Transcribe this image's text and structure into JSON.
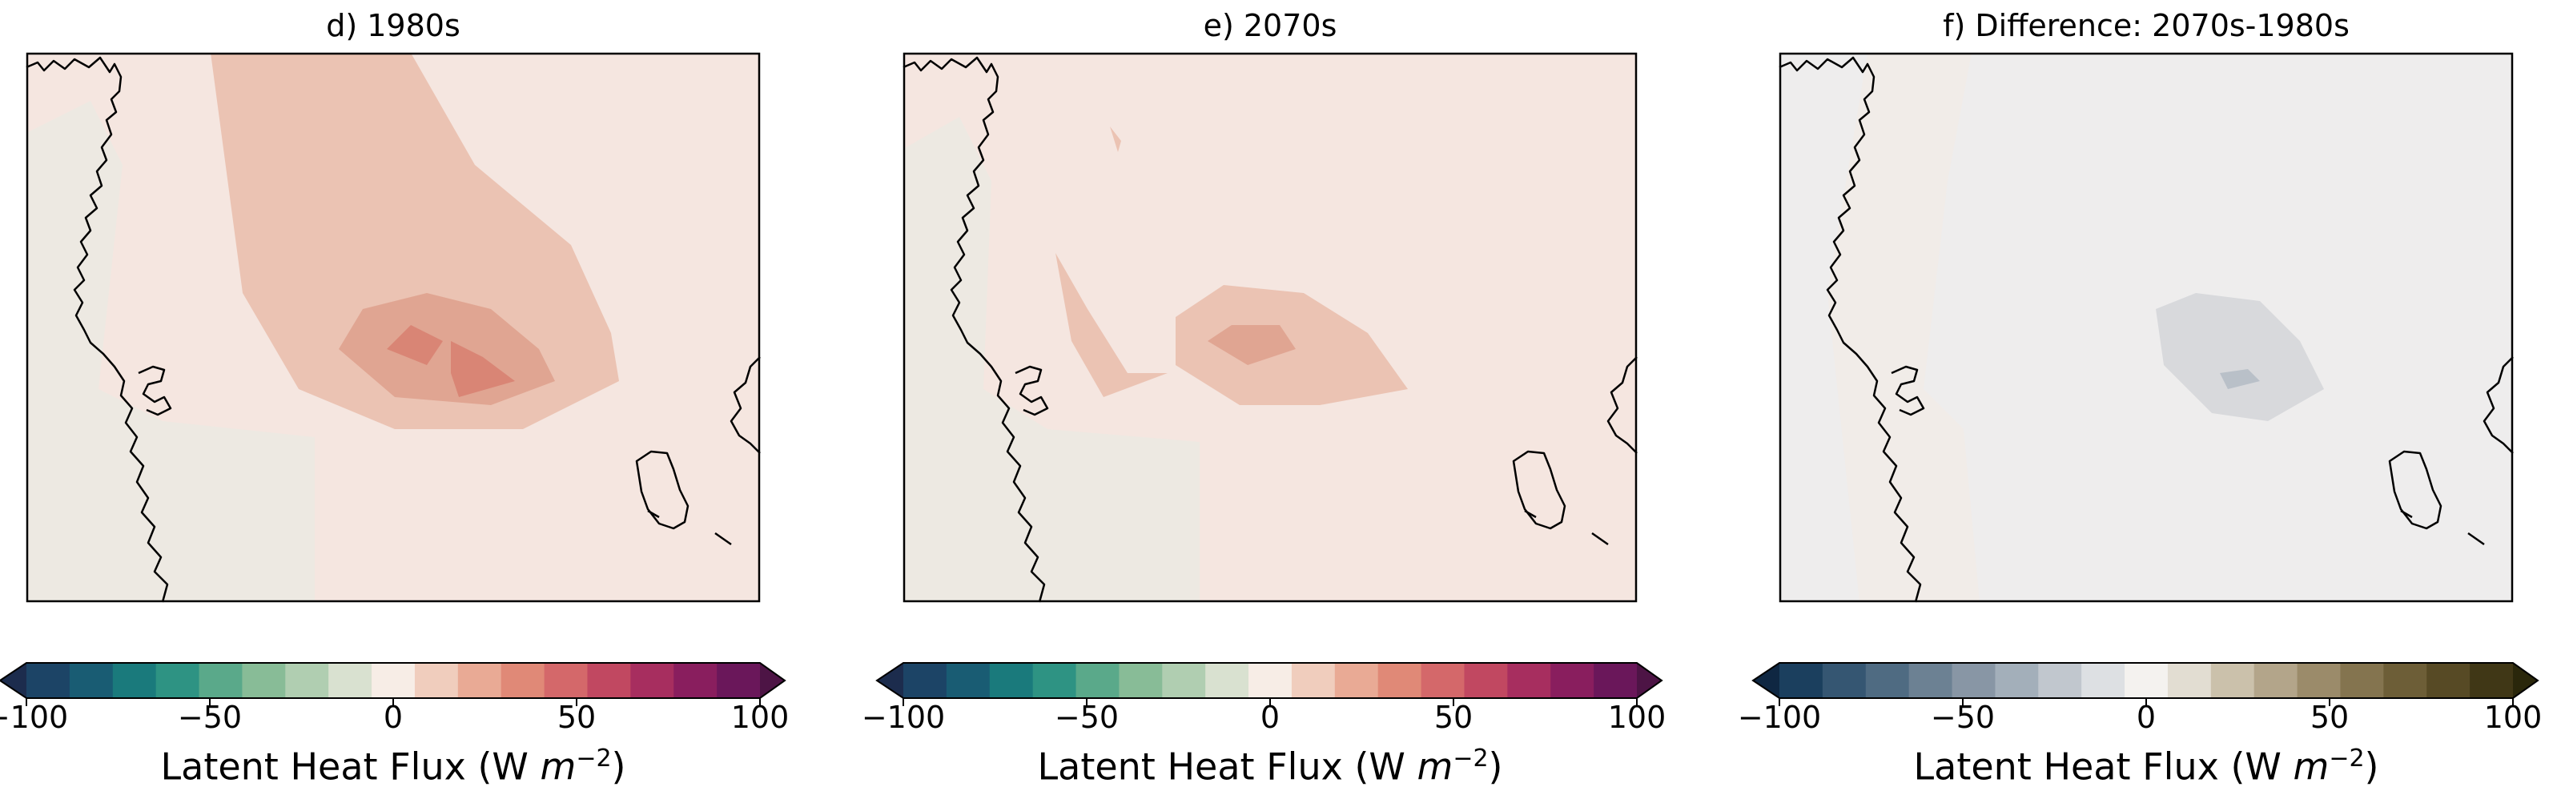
{
  "chart_data": [
    {
      "type": "heatmap",
      "title": "d) 1980s",
      "colorbar": {
        "label_main": "Latent Heat Flux (W ",
        "label_unit": "m",
        "label_exp": "−2",
        "label_close": ")",
        "range": [
          -100,
          100
        ],
        "ticks": [
          "−100",
          "−50",
          "0",
          "50",
          "100"
        ],
        "colors": [
          "#1c2c4d",
          "#1c4466",
          "#195c73",
          "#1a7a7c",
          "#2e9383",
          "#5aa98a",
          "#88bc97",
          "#b0ceb1",
          "#d9e1d0",
          "#f7ede6",
          "#f0cdbd",
          "#e9aa95",
          "#e08977",
          "#d4686a",
          "#c14861",
          "#a72e5f",
          "#891e5e",
          "#6a175a",
          "#4d1445"
        ]
      },
      "field_colors": {
        "background": "#f5e6e0",
        "west": "#ede9e2",
        "low": "#ebc3b3",
        "mid": "#e0a592",
        "high": "#d98575"
      }
    },
    {
      "type": "heatmap",
      "title": "e) 2070s",
      "colorbar": {
        "label_main": "Latent Heat Flux (W ",
        "label_unit": "m",
        "label_exp": "−2",
        "label_close": ")",
        "range": [
          -100,
          100
        ],
        "ticks": [
          "−100",
          "−50",
          "0",
          "50",
          "100"
        ],
        "colors": [
          "#1c2c4d",
          "#1c4466",
          "#195c73",
          "#1a7a7c",
          "#2e9383",
          "#5aa98a",
          "#88bc97",
          "#b0ceb1",
          "#d9e1d0",
          "#f7ede6",
          "#f0cdbd",
          "#e9aa95",
          "#e08977",
          "#d4686a",
          "#c14861",
          "#a72e5f",
          "#891e5e",
          "#6a175a",
          "#4d1445"
        ]
      },
      "field_colors": {
        "background": "#f5e6e0",
        "west": "#ede9e2",
        "low": "#ebc3b3",
        "mid": "#e0a592"
      }
    },
    {
      "type": "heatmap",
      "title": "f) Difference: 2070s-1980s",
      "colorbar": {
        "label_main": "Latent Heat Flux (W ",
        "label_unit": "m",
        "label_exp": "−2",
        "label_close": ")",
        "range": [
          -100,
          100
        ],
        "ticks": [
          "−100",
          "−50",
          "0",
          "50",
          "100"
        ],
        "colors": [
          "#0f2742",
          "#1b3f5e",
          "#355672",
          "#4f6b82",
          "#6c8193",
          "#8896a5",
          "#a3afba",
          "#c1c7ce",
          "#dde0e3",
          "#f4f2ef",
          "#e2ddd2",
          "#cbc1ab",
          "#b3a58a",
          "#9b8b6a",
          "#84744f",
          "#6d5e37",
          "#574a25",
          "#403716",
          "#2a270b"
        ]
      },
      "field_colors": {
        "background": "#eeeded",
        "east": "#f1ece8",
        "low": "#d8d9dc",
        "mid": "#b9c0c8"
      }
    }
  ]
}
